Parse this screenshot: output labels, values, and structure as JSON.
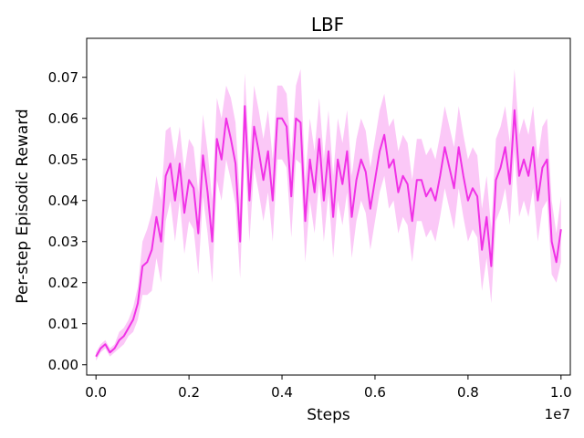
{
  "chart_data": {
    "type": "line",
    "title": "LBF",
    "xlabel": "Steps",
    "ylabel": "Per-step Episodic Reward",
    "x_offset_label": "1e7",
    "xlim": [
      -0.02,
      1.02
    ],
    "ylim": [
      -0.0025,
      0.0795
    ],
    "x_ticks": [
      0.0,
      0.2,
      0.4,
      0.6,
      0.8,
      1.0
    ],
    "x_tick_labels": [
      "0.0",
      "0.2",
      "0.4",
      "0.6",
      "0.8",
      "1.0"
    ],
    "y_ticks": [
      0.0,
      0.01,
      0.02,
      0.03,
      0.04,
      0.05,
      0.06,
      0.07
    ],
    "y_tick_labels": [
      "0.00",
      "0.01",
      "0.02",
      "0.03",
      "0.04",
      "0.05",
      "0.06",
      "0.07"
    ],
    "grid": false,
    "legend": "none",
    "colors": {
      "line": "#f032e6",
      "band": "#f9b5f4"
    },
    "series": [
      {
        "x": [
          0.0,
          0.01,
          0.02,
          0.03,
          0.04,
          0.05,
          0.06,
          0.07,
          0.08,
          0.09,
          0.1,
          0.11,
          0.12,
          0.13,
          0.14,
          0.15,
          0.16,
          0.17,
          0.18,
          0.19,
          0.2,
          0.21,
          0.22,
          0.23,
          0.24,
          0.25,
          0.26,
          0.27,
          0.28,
          0.29,
          0.3,
          0.31,
          0.32,
          0.33,
          0.34,
          0.35,
          0.36,
          0.37,
          0.38,
          0.39,
          0.4,
          0.41,
          0.42,
          0.43,
          0.44,
          0.45,
          0.46,
          0.47,
          0.48,
          0.49,
          0.5,
          0.51,
          0.52,
          0.53,
          0.54,
          0.55,
          0.56,
          0.57,
          0.58,
          0.59,
          0.6,
          0.61,
          0.62,
          0.63,
          0.64,
          0.65,
          0.66,
          0.67,
          0.68,
          0.69,
          0.7,
          0.71,
          0.72,
          0.73,
          0.74,
          0.75,
          0.76,
          0.77,
          0.78,
          0.79,
          0.8,
          0.81,
          0.82,
          0.83,
          0.84,
          0.85,
          0.86,
          0.87,
          0.88,
          0.89,
          0.9,
          0.91,
          0.92,
          0.93,
          0.94,
          0.95,
          0.96,
          0.97,
          0.98,
          0.99,
          1.0
        ],
        "mean": [
          0.002,
          0.004,
          0.005,
          0.003,
          0.004,
          0.006,
          0.007,
          0.009,
          0.011,
          0.015,
          0.024,
          0.025,
          0.028,
          0.036,
          0.03,
          0.046,
          0.049,
          0.04,
          0.049,
          0.037,
          0.045,
          0.043,
          0.032,
          0.051,
          0.042,
          0.03,
          0.055,
          0.05,
          0.06,
          0.055,
          0.049,
          0.03,
          0.063,
          0.04,
          0.058,
          0.052,
          0.045,
          0.052,
          0.04,
          0.06,
          0.06,
          0.058,
          0.041,
          0.06,
          0.059,
          0.035,
          0.05,
          0.042,
          0.055,
          0.04,
          0.052,
          0.036,
          0.05,
          0.044,
          0.052,
          0.036,
          0.045,
          0.05,
          0.047,
          0.038,
          0.045,
          0.052,
          0.056,
          0.048,
          0.05,
          0.042,
          0.046,
          0.044,
          0.035,
          0.045,
          0.045,
          0.041,
          0.043,
          0.04,
          0.046,
          0.053,
          0.048,
          0.043,
          0.053,
          0.046,
          0.04,
          0.043,
          0.041,
          0.028,
          0.036,
          0.024,
          0.045,
          0.048,
          0.053,
          0.044,
          0.062,
          0.046,
          0.05,
          0.046,
          0.053,
          0.04,
          0.048,
          0.05,
          0.03,
          0.025,
          0.033
        ],
        "lower": [
          0.001,
          0.003,
          0.004,
          0.002,
          0.003,
          0.004,
          0.005,
          0.007,
          0.008,
          0.011,
          0.017,
          0.017,
          0.018,
          0.026,
          0.02,
          0.035,
          0.04,
          0.03,
          0.04,
          0.027,
          0.035,
          0.033,
          0.022,
          0.041,
          0.032,
          0.02,
          0.045,
          0.04,
          0.05,
          0.045,
          0.039,
          0.021,
          0.053,
          0.03,
          0.048,
          0.042,
          0.035,
          0.042,
          0.03,
          0.05,
          0.05,
          0.048,
          0.031,
          0.05,
          0.049,
          0.025,
          0.04,
          0.032,
          0.045,
          0.03,
          0.042,
          0.026,
          0.04,
          0.034,
          0.042,
          0.026,
          0.035,
          0.04,
          0.037,
          0.028,
          0.035,
          0.042,
          0.046,
          0.038,
          0.04,
          0.032,
          0.036,
          0.034,
          0.025,
          0.035,
          0.035,
          0.031,
          0.033,
          0.03,
          0.036,
          0.043,
          0.038,
          0.033,
          0.043,
          0.036,
          0.03,
          0.033,
          0.031,
          0.018,
          0.026,
          0.015,
          0.035,
          0.038,
          0.043,
          0.034,
          0.052,
          0.036,
          0.04,
          0.036,
          0.043,
          0.03,
          0.038,
          0.04,
          0.022,
          0.02,
          0.025
        ],
        "upper": [
          0.003,
          0.005,
          0.006,
          0.004,
          0.005,
          0.008,
          0.009,
          0.011,
          0.014,
          0.019,
          0.03,
          0.033,
          0.037,
          0.046,
          0.04,
          0.057,
          0.058,
          0.05,
          0.058,
          0.047,
          0.055,
          0.053,
          0.042,
          0.061,
          0.052,
          0.04,
          0.065,
          0.06,
          0.068,
          0.065,
          0.059,
          0.04,
          0.071,
          0.05,
          0.068,
          0.062,
          0.055,
          0.062,
          0.05,
          0.068,
          0.068,
          0.066,
          0.051,
          0.068,
          0.072,
          0.045,
          0.06,
          0.052,
          0.065,
          0.05,
          0.062,
          0.046,
          0.06,
          0.054,
          0.062,
          0.046,
          0.055,
          0.06,
          0.057,
          0.048,
          0.055,
          0.062,
          0.066,
          0.058,
          0.06,
          0.052,
          0.056,
          0.054,
          0.045,
          0.055,
          0.055,
          0.051,
          0.053,
          0.05,
          0.056,
          0.063,
          0.058,
          0.053,
          0.063,
          0.056,
          0.05,
          0.053,
          0.051,
          0.038,
          0.046,
          0.033,
          0.055,
          0.058,
          0.063,
          0.054,
          0.072,
          0.056,
          0.06,
          0.056,
          0.063,
          0.05,
          0.058,
          0.06,
          0.04,
          0.032,
          0.041
        ]
      }
    ]
  }
}
